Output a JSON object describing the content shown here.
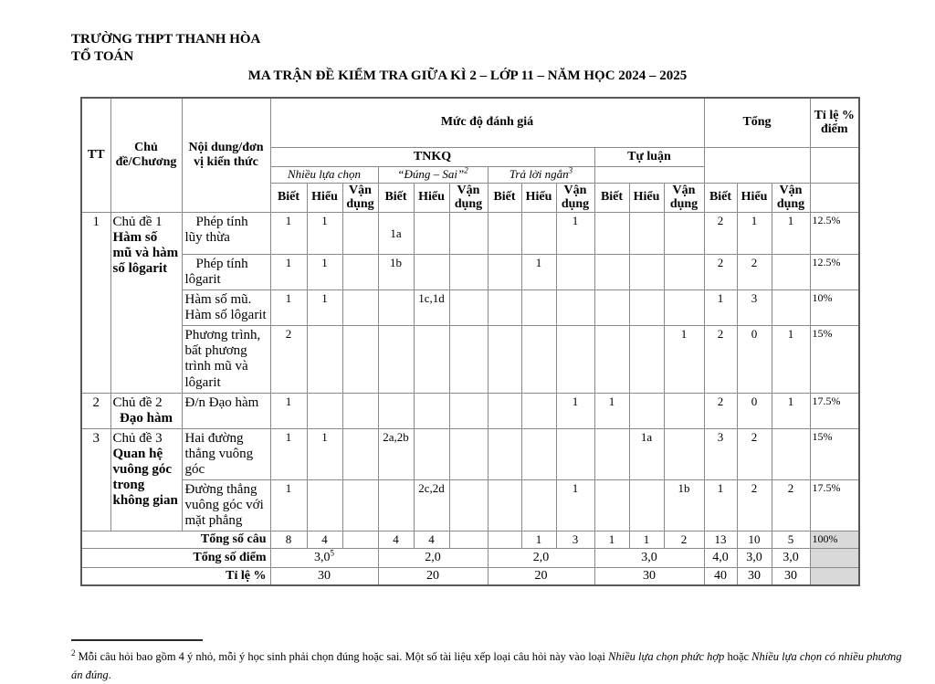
{
  "page": {
    "school": "TRƯỜNG THPT THANH HÒA",
    "department": "TỔ TOÁN",
    "title": "MA TRẬN ĐỀ KIỂM TRA GIỮA KÌ 2 – LỚP 11 – NĂM HỌC 2024 – 2025"
  },
  "matrix": {
    "head": {
      "tt": "TT",
      "chapter": "Chủ đề/Chương",
      "content": "Nội dung/đơn vị kiến thức",
      "assessment": "Mức độ đánh giá",
      "tnkq": "TNKQ",
      "essay": "Tự luận",
      "multiple_choice": "Nhiều lựa chọn",
      "true_false": "“Đúng – Sai”",
      "true_false_note": "2",
      "short_answer": "Trả lời ngắn",
      "short_answer_note": "3",
      "total": "Tổng",
      "percent": "Tỉ lệ % điểm",
      "know": "Biết",
      "understand": "Hiểu",
      "apply": "Vận dụng"
    },
    "topics": [
      {
        "tt": "1",
        "chapter_prefix": "Chủ đề 1",
        "chapter_name": "Hàm số mũ và hàm số lôgarit",
        "rows": [
          {
            "content": "Phép tính lũy thừa",
            "cells": [
              "1",
              "1",
              "",
              "\n1a",
              "",
              "",
              "",
              "",
              "1",
              "",
              "",
              "",
              "2",
              "1",
              "1",
              "12.5%"
            ]
          },
          {
            "content": "Phép tính lôgarit",
            "cells": [
              "1",
              "1",
              "",
              "1b",
              "",
              "",
              "",
              "1",
              "",
              "",
              "",
              "",
              "2",
              "2",
              "",
              "12.5%"
            ]
          },
          {
            "content": "Hàm số mũ. Hàm số lôgarit",
            "cells": [
              "1",
              "1",
              "",
              "",
              "1c,1d",
              "",
              "",
              "",
              "",
              "",
              "",
              "",
              "1",
              "3",
              "",
              "10%"
            ]
          },
          {
            "content": "Phương trình, bất phương trình mũ và lôgarit",
            "cells": [
              "2",
              "",
              "",
              "",
              "",
              "",
              "",
              "",
              "",
              "",
              "",
              "1",
              "2",
              "0",
              "1",
              "15%"
            ]
          }
        ]
      },
      {
        "tt": "2",
        "chapter_prefix": "Chủ đề 2",
        "chapter_name": "Đạo hàm",
        "rows": [
          {
            "content": "Đ/n Đạo hàm",
            "cells": [
              "1",
              "",
              "",
              "",
              "",
              "",
              "",
              "",
              "1",
              "1",
              "",
              "",
              "2",
              "0",
              "1",
              "17.5%"
            ]
          }
        ]
      },
      {
        "tt": "3",
        "chapter_prefix": "Chủ đề 3",
        "chapter_name": "Quan hệ vuông góc trong không gian",
        "rows": [
          {
            "content": "Hai đường thẳng vuông góc",
            "cells": [
              "1",
              "1",
              "",
              "2a,2b",
              "",
              "",
              "",
              "",
              "",
              "",
              "1a",
              "",
              "3",
              "2",
              "",
              "15%"
            ]
          },
          {
            "content": "Đường thẳng vuông góc với mặt phẳng",
            "cells": [
              "1",
              "",
              "",
              "",
              "2c,2d",
              "",
              "",
              "",
              "1",
              "",
              "",
              "1b",
              "1",
              "2",
              "2",
              "17.5%"
            ]
          }
        ]
      }
    ],
    "footer": {
      "total_questions_label": "Tổng số câu",
      "total_questions": [
        "8",
        "4",
        "",
        "4",
        "4",
        "",
        "",
        "1",
        "3",
        "1",
        "1",
        "2",
        "13",
        "10",
        "5",
        "100%"
      ],
      "total_points_label": "Tổng số điểm",
      "total_points": {
        "mc": "3,0",
        "mc_note": "5",
        "tf": "2,0",
        "sa": "2,0",
        "essay": "3,0",
        "know": "4,0",
        "understand": "3,0",
        "apply": "3,0"
      },
      "percent_label": "Tỉ lệ %",
      "percents": {
        "mc": "30",
        "tf": "20",
        "sa": "20",
        "essay": "30",
        "know": "40",
        "understand": "30",
        "apply": "30"
      }
    }
  },
  "footnote": {
    "marker": "2",
    "text_1": "Mỗi câu hỏi bao gồm 4 ý nhỏ, mỗi ý học sinh phải chọn đúng hoặc sai. Một số tài liệu xếp loại câu hỏi này vào loại ",
    "italic_1": "Nhiều lựa chọn phức hợp",
    "text_2": " hoặc ",
    "italic_2": "Nhiều lựa chọn có nhiều phương án đúng",
    "text_3": "."
  }
}
